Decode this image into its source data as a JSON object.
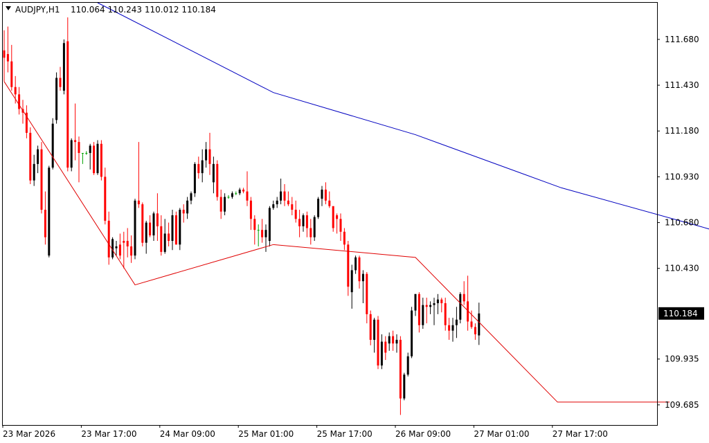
{
  "header": {
    "symbol": "AUDJPY,H1",
    "ohlc": "110.064 110.243 110.012 110.184",
    "menu_icon": "triangle-down-icon"
  },
  "y_axis": {
    "min": 109.575,
    "max": 111.88,
    "ticks": [
      "111.680",
      "111.430",
      "111.180",
      "110.930",
      "110.680",
      "110.430",
      "109.935",
      "109.685"
    ],
    "tick_values": [
      111.68,
      111.43,
      111.18,
      110.93,
      110.68,
      110.43,
      109.935,
      109.685
    ]
  },
  "x_axis": {
    "labels": [
      "23 Mar 2026",
      "23 Mar 17:00",
      "24 Mar 09:00",
      "25 Mar 01:00",
      "25 Mar 17:00",
      "26 Mar 09:00",
      "27 Mar 01:00",
      "27 Mar 17:00"
    ],
    "label_indices": [
      0,
      21,
      42,
      63,
      84,
      105,
      126,
      147
    ]
  },
  "current_price": {
    "label": "110.184",
    "value": 110.184
  },
  "colors": {
    "bull": "#000000",
    "bear": "#ff0000",
    "doji": "#00a000",
    "upper_line": "#0000c0",
    "lower_line": "#e00000",
    "axis": "#000000",
    "price_tag_bg": "#000000",
    "price_tag_text": "#ffffff",
    "background": "#ffffff"
  },
  "chart_data": {
    "type": "candlestick",
    "symbol": "AUDJPY",
    "timeframe": "H1",
    "candles": [
      [
        111.62,
        111.73,
        111.45,
        111.58
      ],
      [
        111.6,
        111.75,
        111.5,
        111.56
      ],
      [
        111.56,
        111.65,
        111.4,
        111.42
      ],
      [
        111.42,
        111.48,
        111.33,
        111.38
      ],
      [
        111.38,
        111.42,
        111.27,
        111.3
      ],
      [
        111.3,
        111.35,
        111.22,
        111.28
      ],
      [
        111.28,
        111.32,
        111.14,
        111.17
      ],
      [
        111.17,
        111.2,
        110.89,
        110.91
      ],
      [
        110.91,
        111.05,
        110.88,
        111.0
      ],
      [
        111.0,
        111.1,
        110.95,
        111.08
      ],
      [
        111.08,
        111.12,
        110.73,
        110.75
      ],
      [
        110.75,
        110.85,
        110.56,
        110.6
      ],
      [
        110.5,
        110.99,
        110.49,
        110.98
      ],
      [
        110.98,
        111.25,
        110.97,
        111.22
      ],
      [
        111.24,
        111.5,
        111.22,
        111.47
      ],
      [
        111.47,
        111.53,
        111.4,
        111.42
      ],
      [
        111.4,
        111.68,
        111.38,
        111.66
      ],
      [
        111.67,
        111.8,
        110.96,
        110.98
      ],
      [
        110.98,
        111.14,
        110.96,
        111.13
      ],
      [
        111.13,
        111.33,
        111.02,
        111.12
      ],
      [
        111.12,
        111.15,
        110.9,
        111.06
      ],
      [
        111.06,
        111.06,
        111.0,
        111.06
      ],
      [
        111.06,
        111.07,
        111.05,
        111.06
      ],
      [
        111.06,
        111.11,
        110.97,
        111.1
      ],
      [
        111.1,
        111.12,
        110.94,
        110.95
      ],
      [
        110.95,
        111.13,
        110.94,
        111.11
      ],
      [
        111.11,
        111.13,
        110.91,
        110.93
      ],
      [
        110.93,
        110.98,
        110.67,
        110.69
      ],
      [
        110.69,
        110.74,
        110.45,
        110.49
      ],
      [
        110.49,
        110.6,
        110.48,
        110.59
      ],
      [
        110.54,
        110.58,
        110.5,
        110.55
      ],
      [
        110.56,
        110.62,
        110.48,
        110.5
      ],
      [
        110.58,
        110.63,
        110.43,
        110.57
      ],
      [
        110.58,
        110.65,
        110.49,
        110.55
      ],
      [
        110.55,
        110.61,
        110.46,
        110.5
      ],
      [
        110.5,
        110.81,
        110.48,
        110.8
      ],
      [
        110.8,
        111.12,
        110.76,
        110.78
      ],
      [
        110.78,
        110.79,
        110.55,
        110.57
      ],
      [
        110.57,
        110.69,
        110.51,
        110.68
      ],
      [
        110.68,
        110.72,
        110.6,
        110.61
      ],
      [
        110.61,
        110.74,
        110.58,
        110.73
      ],
      [
        110.73,
        110.84,
        110.58,
        110.66
      ],
      [
        110.66,
        110.72,
        110.5,
        110.52
      ],
      [
        110.52,
        110.7,
        110.51,
        110.62
      ],
      [
        110.62,
        110.68,
        110.55,
        110.58
      ],
      [
        110.58,
        110.75,
        110.53,
        110.72
      ],
      [
        110.72,
        110.74,
        110.56,
        110.56
      ],
      [
        110.56,
        110.76,
        110.53,
        110.75
      ],
      [
        110.75,
        110.78,
        110.68,
        110.73
      ],
      [
        110.73,
        110.82,
        110.7,
        110.8
      ],
      [
        110.8,
        110.85,
        110.78,
        110.84
      ],
      [
        110.84,
        111.01,
        110.82,
        111.0
      ],
      [
        111.0,
        111.04,
        110.92,
        110.95
      ],
      [
        110.95,
        111.08,
        110.9,
        111.02
      ],
      [
        111.02,
        111.12,
        110.98,
        111.08
      ],
      [
        111.08,
        111.17,
        110.94,
        111.0
      ],
      [
        110.9,
        111.04,
        110.84,
        111.0
      ],
      [
        111.0,
        111.02,
        110.8,
        110.82
      ],
      [
        110.82,
        110.86,
        110.7,
        110.74
      ],
      [
        110.74,
        110.84,
        110.72,
        110.82
      ],
      [
        110.82,
        110.83,
        110.81,
        110.82
      ],
      [
        110.82,
        110.85,
        110.81,
        110.84
      ],
      [
        110.84,
        110.85,
        110.83,
        110.84
      ],
      [
        110.84,
        110.87,
        110.83,
        110.86
      ],
      [
        110.86,
        110.87,
        110.84,
        110.85
      ],
      [
        110.85,
        110.96,
        110.77,
        110.8
      ],
      [
        110.8,
        110.82,
        110.64,
        110.7
      ],
      [
        110.7,
        110.72,
        110.56,
        110.64
      ],
      [
        110.64,
        110.67,
        110.55,
        110.64
      ],
      [
        110.64,
        110.7,
        110.57,
        110.6
      ],
      [
        110.6,
        110.67,
        110.52,
        110.64
      ],
      [
        110.58,
        110.77,
        110.55,
        110.76
      ],
      [
        110.76,
        110.8,
        110.75,
        110.78
      ],
      [
        110.78,
        110.82,
        110.76,
        110.8
      ],
      [
        110.8,
        110.92,
        110.78,
        110.85
      ],
      [
        110.85,
        110.89,
        110.77,
        110.8
      ],
      [
        110.8,
        110.85,
        110.77,
        110.78
      ],
      [
        110.78,
        110.82,
        110.72,
        110.75
      ],
      [
        110.75,
        110.8,
        110.68,
        110.7
      ],
      [
        110.7,
        110.75,
        110.6,
        110.66
      ],
      [
        110.66,
        110.73,
        110.63,
        110.72
      ],
      [
        110.72,
        110.74,
        110.6,
        110.65
      ],
      [
        110.65,
        110.7,
        110.56,
        110.6
      ],
      [
        110.6,
        110.72,
        110.58,
        110.71
      ],
      [
        110.71,
        110.82,
        110.7,
        110.81
      ],
      [
        110.81,
        110.88,
        110.77,
        110.86
      ],
      [
        110.86,
        110.9,
        110.78,
        110.8
      ],
      [
        110.8,
        110.85,
        110.76,
        110.77
      ],
      [
        110.77,
        110.76,
        110.63,
        110.65
      ],
      [
        110.72,
        110.73,
        110.62,
        110.7
      ],
      [
        110.7,
        110.73,
        110.58,
        110.63
      ],
      [
        110.63,
        110.65,
        110.53,
        110.56
      ],
      [
        110.56,
        110.58,
        110.28,
        110.33
      ],
      [
        110.3,
        110.45,
        110.21,
        110.42
      ],
      [
        110.42,
        110.5,
        110.4,
        110.49
      ],
      [
        110.49,
        110.5,
        110.32,
        110.36
      ],
      [
        110.36,
        110.42,
        110.24,
        110.4
      ],
      [
        110.4,
        110.41,
        110.13,
        110.18
      ],
      [
        110.18,
        110.2,
        110.01,
        110.04
      ],
      [
        110.04,
        110.16,
        109.97,
        110.15
      ],
      [
        110.15,
        110.17,
        109.88,
        109.9
      ],
      [
        109.9,
        110.07,
        109.88,
        110.03
      ],
      [
        110.03,
        110.06,
        109.93,
        109.97
      ],
      [
        110.02,
        110.08,
        109.98,
        110.06
      ],
      [
        110.06,
        110.09,
        109.98,
        110.02
      ],
      [
        110.02,
        110.07,
        109.97,
        110.04
      ],
      [
        110.04,
        110.06,
        109.63,
        109.72
      ],
      [
        109.72,
        109.86,
        109.71,
        109.85
      ],
      [
        109.85,
        109.97,
        109.84,
        109.95
      ],
      [
        109.95,
        110.22,
        109.94,
        110.2
      ],
      [
        110.2,
        110.29,
        110.17,
        110.29
      ],
      [
        110.29,
        110.3,
        110.08,
        110.12
      ],
      [
        110.12,
        110.27,
        110.1,
        110.23
      ],
      [
        110.23,
        110.27,
        110.13,
        110.22
      ],
      [
        110.22,
        110.25,
        110.18,
        110.23
      ],
      [
        110.23,
        110.27,
        110.12,
        110.24
      ],
      [
        110.24,
        110.29,
        110.18,
        110.26
      ],
      [
        110.26,
        110.27,
        110.19,
        110.24
      ],
      [
        110.24,
        110.27,
        110.09,
        110.12
      ],
      [
        110.12,
        110.16,
        110.04,
        110.09
      ],
      [
        110.09,
        110.16,
        110.03,
        110.12
      ],
      [
        110.12,
        110.22,
        110.05,
        110.15
      ],
      [
        110.15,
        110.3,
        110.13,
        110.29
      ],
      [
        110.29,
        110.36,
        110.23,
        110.25
      ],
      [
        110.25,
        110.39,
        110.09,
        110.14
      ],
      [
        110.14,
        110.2,
        110.1,
        110.11
      ],
      [
        110.11,
        110.13,
        110.04,
        110.07
      ],
      [
        110.064,
        110.243,
        110.012,
        110.184
      ]
    ],
    "upper_line": {
      "points": [
        [
          25,
          111.88
        ],
        [
          72,
          111.39
        ],
        [
          110,
          111.16
        ],
        [
          149,
          110.87
        ],
        [
          186,
          110.66
        ],
        [
          223,
          110.44
        ]
      ]
    },
    "lower_line": {
      "points": [
        [
          0,
          111.45
        ],
        [
          35,
          110.34
        ],
        [
          72,
          110.56
        ],
        [
          110,
          110.49
        ],
        [
          148,
          109.7
        ],
        [
          178,
          109.7
        ]
      ]
    },
    "ylim": [
      109.575,
      111.88
    ]
  }
}
